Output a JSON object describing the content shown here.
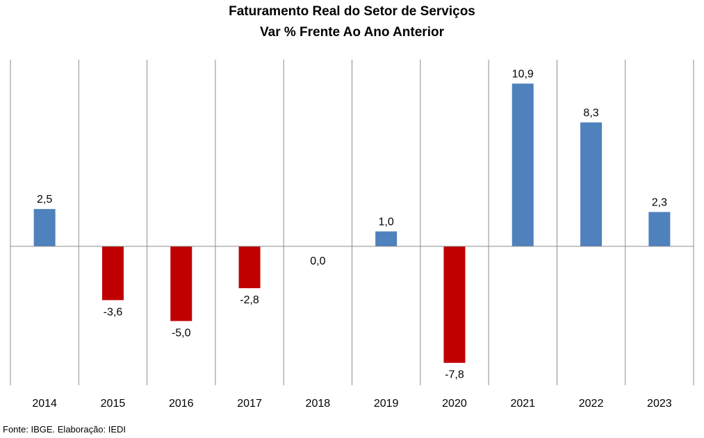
{
  "title": "Faturamento Real do Setor de Serviços",
  "subtitle": "Var % Frente Ao Ano Anterior",
  "source": "Fonte: IBGE. Elaboração: IEDI",
  "colors": {
    "positive": "#4f81bd",
    "negative": "#c00000",
    "grid": "#8c8c8c"
  },
  "chart_data": {
    "type": "bar",
    "categories": [
      "2014",
      "2015",
      "2016",
      "2017",
      "2018",
      "2019",
      "2020",
      "2021",
      "2022",
      "2023"
    ],
    "values": [
      2.5,
      -3.6,
      -5.0,
      -2.8,
      0.0,
      1.0,
      -7.8,
      10.9,
      8.3,
      2.3
    ],
    "data_labels": [
      "2,5",
      "-3,6",
      "-5,0",
      "-2,8",
      "0,0",
      "1,0",
      "-7,8",
      "10,9",
      "8,3",
      "2,3"
    ],
    "ylim": [
      -9.3,
      12.5
    ],
    "grid": "vertical category separators",
    "legend": "none"
  }
}
